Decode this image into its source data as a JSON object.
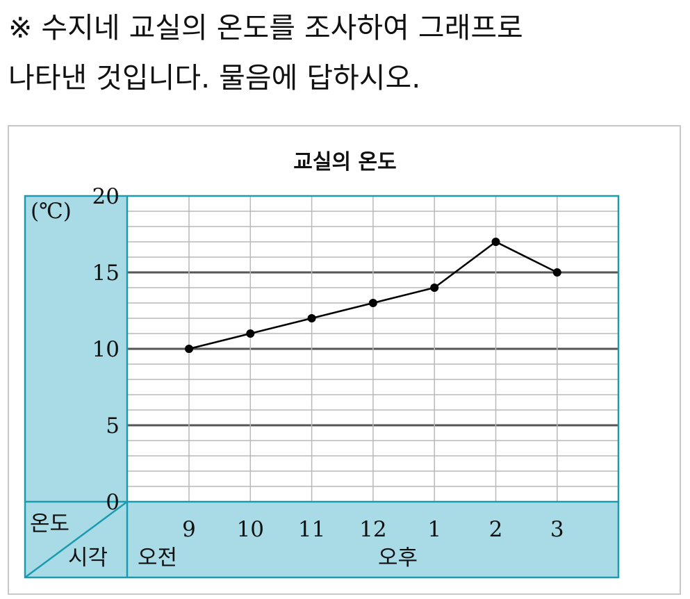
{
  "question": {
    "line1": "※ 수지네 교실의 온도를 조사하여 그래프로",
    "line2": "나타낸 것입니다. 물음에 답하시오."
  },
  "chart_data": {
    "type": "line",
    "title": "교실의 온도",
    "unit_label": "(℃)",
    "header_top": "온도",
    "header_bottom": "시각",
    "categories": [
      "9",
      "10",
      "11",
      "12",
      "1",
      "2",
      "3"
    ],
    "values": [
      10,
      11,
      12,
      13,
      14,
      17,
      15
    ],
    "y_ticks": [
      "0",
      "5",
      "10",
      "15",
      "20"
    ],
    "ylim": [
      0,
      20
    ],
    "period_am": "오전",
    "period_pm": "오후",
    "grid": true
  },
  "colors": {
    "panel": "#a8dbe5",
    "border": "#1b9bb0",
    "minor_grid": "#b9b9b9",
    "major_grid": "#555555",
    "line": "#000000"
  }
}
